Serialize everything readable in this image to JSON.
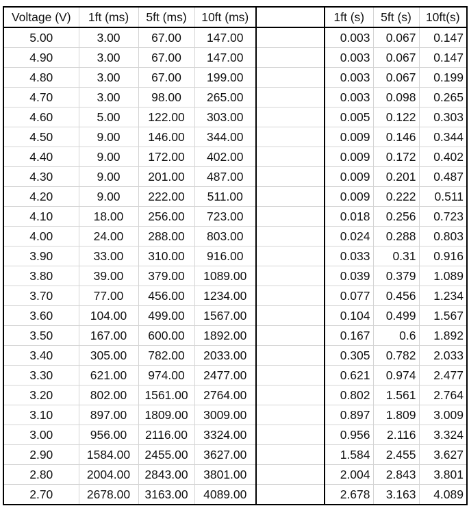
{
  "table": {
    "headers": [
      "Voltage (V)",
      "1ft (ms)",
      "5ft (ms)",
      "10ft (ms)",
      "1ft (s)",
      "5ft (s)",
      "10ft(s)"
    ],
    "rows": [
      [
        "5.00",
        "3.00",
        "67.00",
        "147.00",
        "0.003",
        "0.067",
        "0.147"
      ],
      [
        "4.90",
        "3.00",
        "67.00",
        "147.00",
        "0.003",
        "0.067",
        "0.147"
      ],
      [
        "4.80",
        "3.00",
        "67.00",
        "199.00",
        "0.003",
        "0.067",
        "0.199"
      ],
      [
        "4.70",
        "3.00",
        "98.00",
        "265.00",
        "0.003",
        "0.098",
        "0.265"
      ],
      [
        "4.60",
        "5.00",
        "122.00",
        "303.00",
        "0.005",
        "0.122",
        "0.303"
      ],
      [
        "4.50",
        "9.00",
        "146.00",
        "344.00",
        "0.009",
        "0.146",
        "0.344"
      ],
      [
        "4.40",
        "9.00",
        "172.00",
        "402.00",
        "0.009",
        "0.172",
        "0.402"
      ],
      [
        "4.30",
        "9.00",
        "201.00",
        "487.00",
        "0.009",
        "0.201",
        "0.487"
      ],
      [
        "4.20",
        "9.00",
        "222.00",
        "511.00",
        "0.009",
        "0.222",
        "0.511"
      ],
      [
        "4.10",
        "18.00",
        "256.00",
        "723.00",
        "0.018",
        "0.256",
        "0.723"
      ],
      [
        "4.00",
        "24.00",
        "288.00",
        "803.00",
        "0.024",
        "0.288",
        "0.803"
      ],
      [
        "3.90",
        "33.00",
        "310.00",
        "916.00",
        "0.033",
        "0.31",
        "0.916"
      ],
      [
        "3.80",
        "39.00",
        "379.00",
        "1089.00",
        "0.039",
        "0.379",
        "1.089"
      ],
      [
        "3.70",
        "77.00",
        "456.00",
        "1234.00",
        "0.077",
        "0.456",
        "1.234"
      ],
      [
        "3.60",
        "104.00",
        "499.00",
        "1567.00",
        "0.104",
        "0.499",
        "1.567"
      ],
      [
        "3.50",
        "167.00",
        "600.00",
        "1892.00",
        "0.167",
        "0.6",
        "1.892"
      ],
      [
        "3.40",
        "305.00",
        "782.00",
        "2033.00",
        "0.305",
        "0.782",
        "2.033"
      ],
      [
        "3.30",
        "621.00",
        "974.00",
        "2477.00",
        "0.621",
        "0.974",
        "2.477"
      ],
      [
        "3.20",
        "802.00",
        "1561.00",
        "2764.00",
        "0.802",
        "1.561",
        "2.764"
      ],
      [
        "3.10",
        "897.00",
        "1809.00",
        "3009.00",
        "0.897",
        "1.809",
        "3.009"
      ],
      [
        "3.00",
        "956.00",
        "2116.00",
        "3324.00",
        "0.956",
        "2.116",
        "3.324"
      ],
      [
        "2.90",
        "1584.00",
        "2455.00",
        "3627.00",
        "1.584",
        "2.455",
        "3.627"
      ],
      [
        "2.80",
        "2004.00",
        "2843.00",
        "3801.00",
        "2.004",
        "2.843",
        "3.801"
      ],
      [
        "2.70",
        "2678.00",
        "3163.00",
        "4089.00",
        "2.678",
        "3.163",
        "4.089"
      ]
    ]
  }
}
